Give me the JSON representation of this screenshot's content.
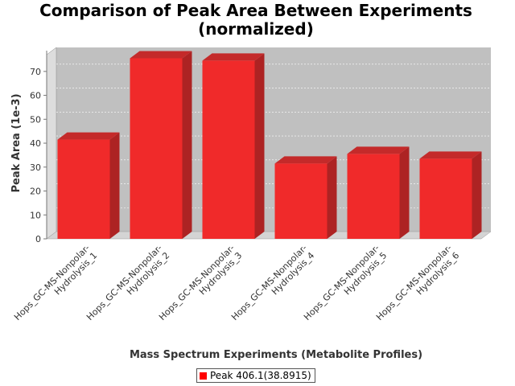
{
  "chart_data": {
    "type": "bar",
    "title": [
      "Comparison of Peak Area Between Experiments",
      "(normalized)"
    ],
    "xlabel": "Mass Spectrum Experiments (Metabolite Profiles)",
    "ylabel": "Peak Area (1e-3)",
    "categories": [
      [
        "Hops_GC-MS-Nonpolar-",
        "Hydrolysis_1"
      ],
      [
        "Hops_GC-MS-Nonpolar-",
        "Hydrolysis_2"
      ],
      [
        "Hops_GC-MS-Nonpolar-",
        "Hydrolysis_3"
      ],
      [
        "Hops_GC-MS-Nonpolar-",
        "Hydrolysis_4"
      ],
      [
        "Hops_GC-MS-Nonpolar-",
        "Hydrolysis_5"
      ],
      [
        "Hops_GC-MS-Nonpolar-",
        "Hydrolysis_6"
      ]
    ],
    "series": [
      {
        "name": "Peak 406.1(38.8915)",
        "values": [
          41.5,
          75.5,
          74.5,
          31.5,
          35.5,
          33.5
        ]
      }
    ],
    "ylim": [
      0,
      77
    ],
    "yticks": [
      0,
      10,
      20,
      30,
      40,
      50,
      60,
      70
    ],
    "grid": true,
    "legend_position": "bottom-center",
    "style": "3d",
    "colors": {
      "bar": "#f02a2a",
      "bar_top": "#c42a2a",
      "bar_side": "#ad2323",
      "plot_bg": "#c0c0c0"
    }
  }
}
